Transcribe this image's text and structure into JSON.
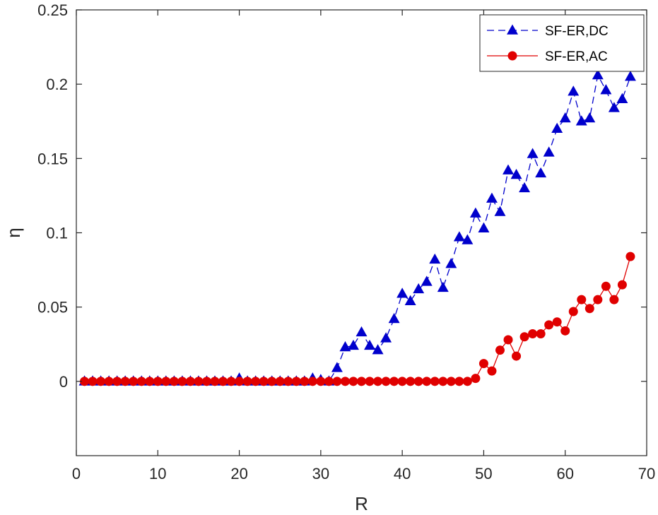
{
  "chart_data": {
    "type": "line",
    "xlabel": "R",
    "ylabel": "η",
    "xlim": [
      0,
      70
    ],
    "ylim": [
      -0.05,
      0.25
    ],
    "xticks": [
      0,
      10,
      20,
      30,
      40,
      50,
      60,
      70
    ],
    "yticks": [
      0,
      0.05,
      0.1,
      0.15,
      0.2,
      0.25
    ],
    "ytick_labels": [
      "0",
      "0.05",
      "0.1",
      "0.15",
      "0.2",
      "0.25"
    ],
    "grid": false,
    "legend_position": "top-right",
    "x": [
      1,
      2,
      3,
      4,
      5,
      6,
      7,
      8,
      9,
      10,
      11,
      12,
      13,
      14,
      15,
      16,
      17,
      18,
      19,
      20,
      21,
      22,
      23,
      24,
      25,
      26,
      27,
      28,
      29,
      30,
      31,
      32,
      33,
      34,
      35,
      36,
      37,
      38,
      39,
      40,
      41,
      42,
      43,
      44,
      45,
      46,
      47,
      48,
      49,
      50,
      51,
      52,
      53,
      54,
      55,
      56,
      57,
      58,
      59,
      60,
      61,
      62,
      63,
      64,
      65,
      66,
      67,
      68
    ],
    "series": [
      {
        "name": "SF-ER,DC",
        "color": "#0000cc",
        "marker": "triangle",
        "line_style": "dashed",
        "values": [
          0,
          0,
          0,
          0,
          0,
          0,
          0,
          0,
          0,
          0,
          0,
          0,
          0,
          0,
          0,
          0,
          0,
          0,
          0,
          0.002,
          0,
          0,
          0,
          0,
          0,
          0,
          0,
          0,
          0.002,
          0.001,
          0,
          0.009,
          0.023,
          0.024,
          0.033,
          0.024,
          0.021,
          0.029,
          0.042,
          0.059,
          0.054,
          0.062,
          0.067,
          0.082,
          0.063,
          0.079,
          0.097,
          0.095,
          0.113,
          0.103,
          0.123,
          0.114,
          0.142,
          0.139,
          0.13,
          0.153,
          0.14,
          0.154,
          0.17,
          0.177,
          0.195,
          0.175,
          0.177,
          0.206,
          0.196,
          0.184,
          0.19,
          0.205
        ]
      },
      {
        "name": "SF-ER,AC",
        "color": "#e00000",
        "marker": "circle",
        "line_style": "solid",
        "values": [
          0,
          0,
          0,
          0,
          0,
          0,
          0,
          0,
          0,
          0,
          0,
          0,
          0,
          0,
          0,
          0,
          0,
          0,
          0,
          0,
          0,
          0,
          0,
          0,
          0,
          0,
          0,
          0,
          0,
          0,
          0,
          0,
          0,
          0,
          0,
          0,
          0,
          0,
          0,
          0,
          0,
          0,
          0,
          0,
          0,
          0,
          0,
          0,
          0.002,
          0.012,
          0.007,
          0.021,
          0.028,
          0.017,
          0.03,
          0.032,
          0.032,
          0.038,
          0.04,
          0.034,
          0.047,
          0.055,
          0.049,
          0.055,
          0.064,
          0.055,
          0.065,
          0.084
        ]
      }
    ]
  }
}
